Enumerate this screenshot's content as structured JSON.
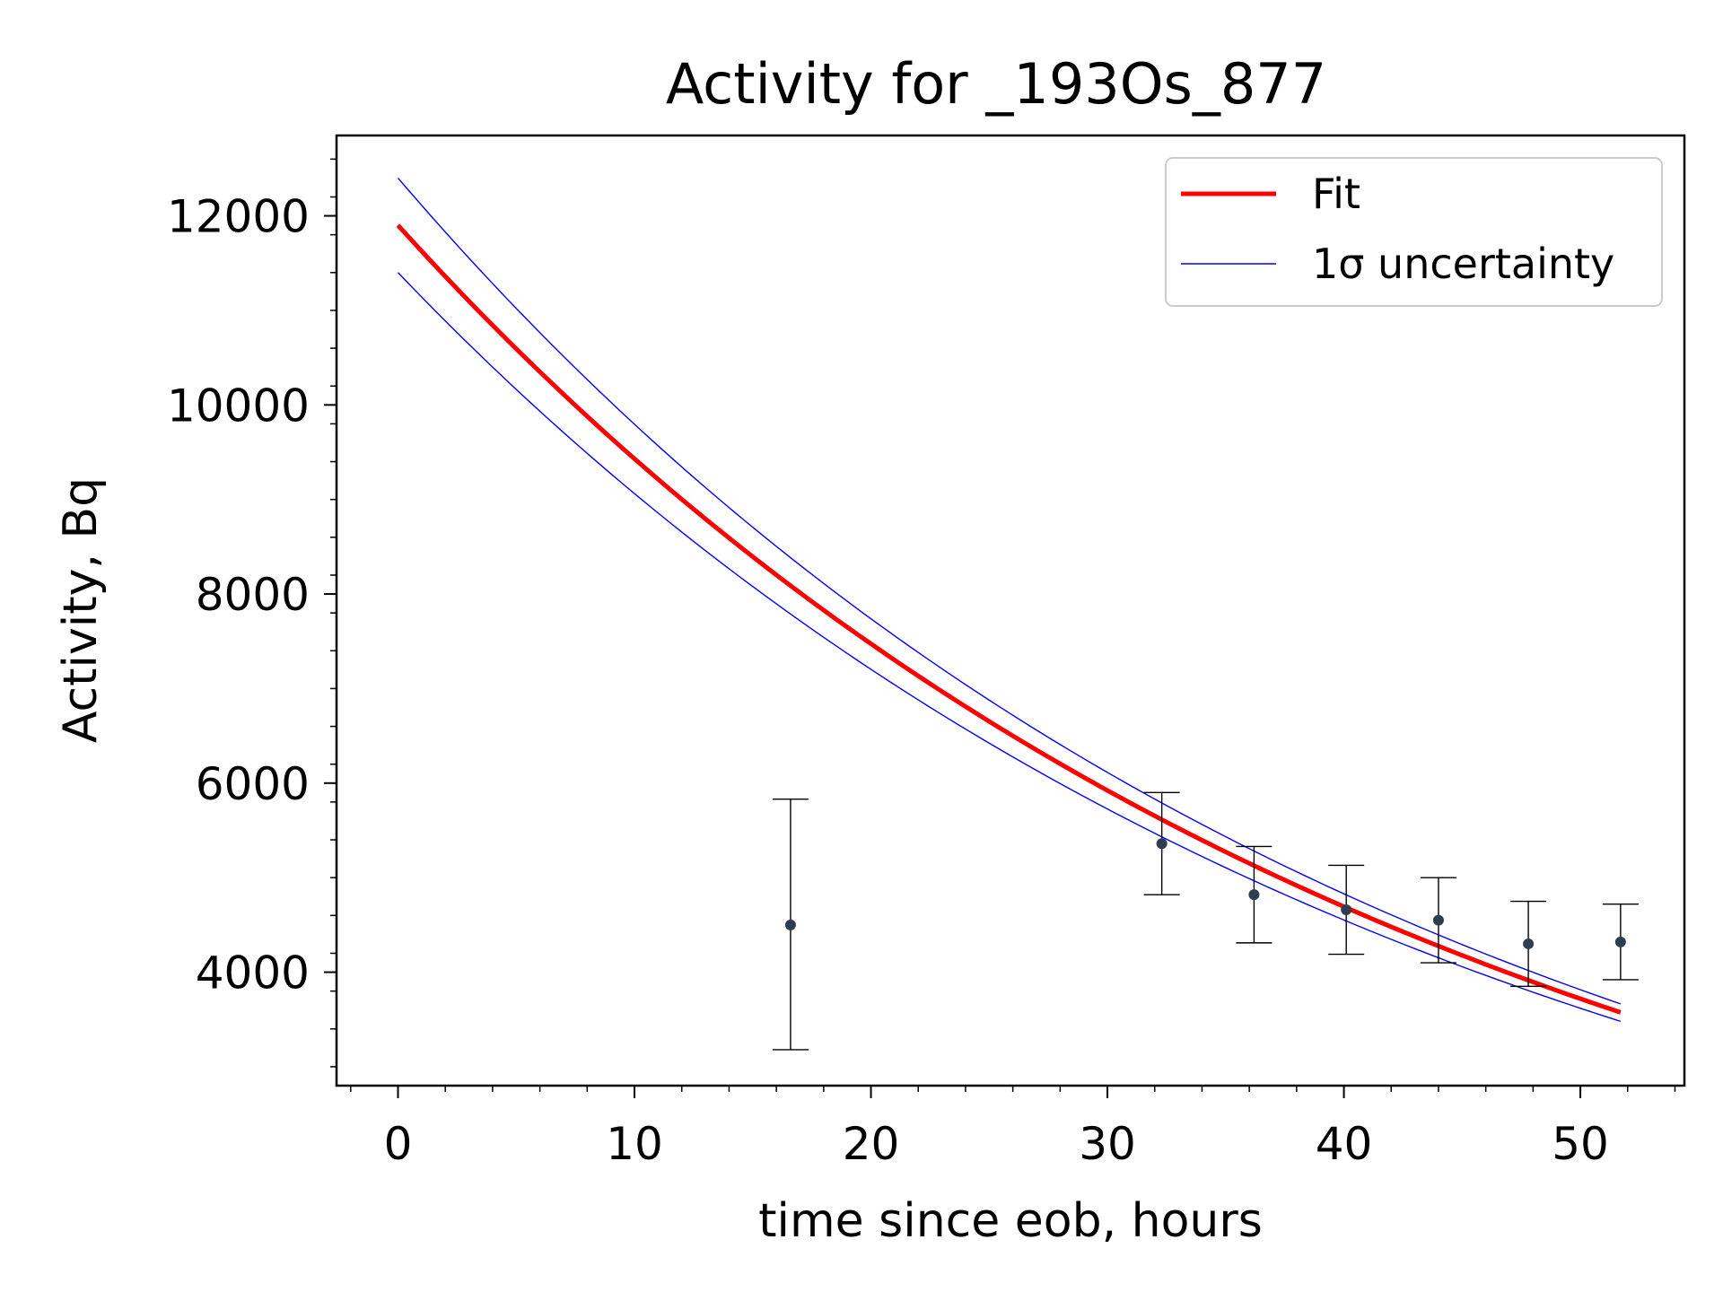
{
  "chart_data": {
    "type": "scatter",
    "title": "Activity for _193Os_877",
    "xlabel": "time since eob, hours",
    "ylabel": "Activity, Bq",
    "xlim": [
      -2.6,
      54.4
    ],
    "ylim": [
      2800,
      12850
    ],
    "xticks": [
      0,
      10,
      20,
      30,
      40,
      50
    ],
    "yticks": [
      4000,
      6000,
      8000,
      10000,
      12000
    ],
    "grid": false,
    "legend_position": "top-right",
    "fit": {
      "name": "Fit",
      "color": "#ff0000",
      "x_range": [
        0,
        51.7
      ],
      "a0": 11900,
      "half_life_hours": 29.8
    },
    "uncertainty": {
      "name": "1σ uncertainty",
      "color": "#0000ff",
      "upper_a0": 12400,
      "upper_half_life_hours": 29.4,
      "lower_a0": 11400,
      "lower_half_life_hours": 30.2
    },
    "points": [
      {
        "x": 16.6,
        "y": 4500,
        "yerr_low": 1320,
        "yerr_high": 1330
      },
      {
        "x": 32.3,
        "y": 5360,
        "yerr_low": 540,
        "yerr_high": 540
      },
      {
        "x": 36.2,
        "y": 4820,
        "yerr_low": 510,
        "yerr_high": 510
      },
      {
        "x": 40.1,
        "y": 4660,
        "yerr_low": 470,
        "yerr_high": 470
      },
      {
        "x": 44.0,
        "y": 4550,
        "yerr_low": 450,
        "yerr_high": 450
      },
      {
        "x": 47.8,
        "y": 4300,
        "yerr_low": 450,
        "yerr_high": 450
      },
      {
        "x": 51.7,
        "y": 4320,
        "yerr_low": 400,
        "yerr_high": 400
      }
    ],
    "point_color": "#2c3e50"
  }
}
